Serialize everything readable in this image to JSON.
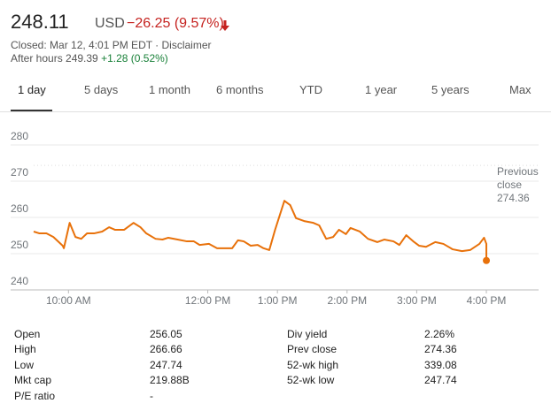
{
  "header": {
    "price": "248.11",
    "currency": "USD",
    "change": "−26.25 (9.57%)",
    "closed": "Closed: Mar 12, 4:01 PM EDT · Disclaimer",
    "after_hours": "After hours 249.39",
    "after_hours_change": "+1.28 (0.52%)"
  },
  "tabs": [
    "1 day",
    "5 days",
    "1 month",
    "6 months",
    "YTD",
    "1 year",
    "5 years",
    "Max"
  ],
  "chart_data": {
    "type": "line",
    "x": [
      570,
      575,
      581,
      587,
      595,
      596,
      601,
      606,
      611,
      616,
      622,
      629,
      635,
      640,
      648,
      656,
      662,
      667,
      675,
      681,
      686,
      694,
      702,
      708,
      713,
      721,
      728,
      736,
      741,
      746,
      751,
      757,
      763,
      768,
      773,
      778,
      786,
      791,
      796,
      803,
      811,
      816,
      822,
      828,
      833,
      839,
      843,
      851,
      858,
      866,
      872,
      880,
      885,
      891,
      897,
      902,
      908,
      916,
      923,
      931,
      939,
      946,
      954,
      958,
      960,
      960
    ],
    "series": [
      {
        "color": "#e8710a",
        "values": [
          256.1,
          255.6,
          255.6,
          254.6,
          252.2,
          251.5,
          258.5,
          254.6,
          254.1,
          255.6,
          255.6,
          256.1,
          257.3,
          256.6,
          256.6,
          258.5,
          257.3,
          255.6,
          254.1,
          253.9,
          254.4,
          253.9,
          253.4,
          253.4,
          252.4,
          252.7,
          251.5,
          251.5,
          251.5,
          253.7,
          253.4,
          252.2,
          252.4,
          251.5,
          251.0,
          256.6,
          264.6,
          263.4,
          259.8,
          259.0,
          258.5,
          257.8,
          254.1,
          254.6,
          256.6,
          255.4,
          257.1,
          256.1,
          254.1,
          253.2,
          253.9,
          253.4,
          252.4,
          255.1,
          253.4,
          252.2,
          251.9,
          253.2,
          252.7,
          251.2,
          250.7,
          251.0,
          252.7,
          254.4,
          252.7,
          248.11
        ]
      }
    ],
    "xlim": [
      570,
      1005
    ],
    "xticks": [
      {
        "value": 600,
        "label": "10:00 AM"
      },
      {
        "value": 720,
        "label": "12:00 PM"
      },
      {
        "value": 780,
        "label": "1:00 PM"
      },
      {
        "value": 840,
        "label": "2:00 PM"
      },
      {
        "value": 900,
        "label": "3:00 PM"
      },
      {
        "value": 960,
        "label": "4:00 PM"
      }
    ],
    "ylim": [
      240,
      280
    ],
    "yticks": [
      240,
      250,
      260,
      270,
      280
    ],
    "grid": true,
    "annotation": {
      "text": "Previous close",
      "value": 274.36
    }
  },
  "table": {
    "rows": [
      [
        "Open",
        "256.05",
        "Div yield",
        "2.26%"
      ],
      [
        "High",
        "266.66",
        "Prev close",
        "274.36"
      ],
      [
        "Low",
        "247.74",
        "52-wk high",
        "339.08"
      ],
      [
        "Mkt cap",
        "219.88B",
        "52-wk low",
        "247.74"
      ],
      [
        "P/E ratio",
        "-"
      ]
    ]
  }
}
